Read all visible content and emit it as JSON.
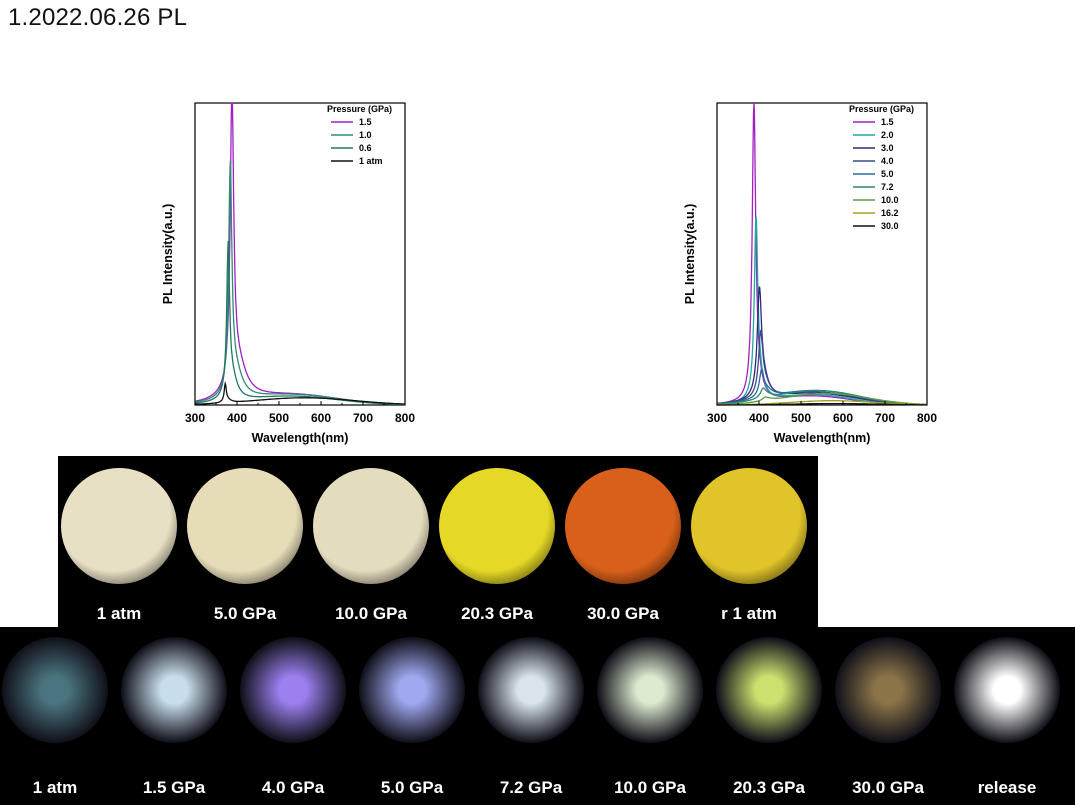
{
  "page": {
    "title": "1.2022.06.26  PL"
  },
  "chart_data": [
    {
      "type": "line",
      "xlabel": "Wavelength(nm)",
      "ylabel": "PL Intensity(a.u.)",
      "xlim": [
        300,
        800
      ],
      "ylim": [
        0,
        1.05
      ],
      "xticks": [
        300,
        400,
        500,
        600,
        700,
        800
      ],
      "legend_title": "Pressure (GPa)",
      "legend_position": "top-right",
      "grid": false,
      "series": [
        {
          "name": "1.5",
          "color": "#a020c0",
          "peak": 388,
          "peak_height": 1.0,
          "sharp_width": 5,
          "mid_width": 24,
          "mid_height": 0.12,
          "broad_center": 530,
          "broad_width": 110,
          "broad_height": 0.035
        },
        {
          "name": "1.0",
          "color": "#2e8b7a",
          "peak": 384,
          "peak_height": 0.76,
          "sharp_width": 4.5,
          "mid_width": 20,
          "mid_height": 0.1,
          "broad_center": 530,
          "broad_width": 110,
          "broad_height": 0.035
        },
        {
          "name": "0.6",
          "color": "#1f7a60",
          "peak": 379,
          "peak_height": 0.5,
          "sharp_width": 4,
          "mid_width": 15,
          "mid_height": 0.08,
          "broad_center": 530,
          "broad_width": 110,
          "broad_height": 0.03
        },
        {
          "name": "1 atm",
          "color": "#111111",
          "peak": 372,
          "peak_height": 0.06,
          "sharp_width": 3,
          "mid_width": 10,
          "mid_height": 0.01,
          "broad_center": 560,
          "broad_width": 120,
          "broad_height": 0.025
        }
      ]
    },
    {
      "type": "line",
      "xlabel": "Wavelength(nm)",
      "ylabel": "PL Intensity(a.u.)",
      "xlim": [
        300,
        800
      ],
      "ylim": [
        0,
        1.05
      ],
      "xticks": [
        300,
        400,
        500,
        600,
        700,
        800
      ],
      "legend_title": "Pressure (GPa)",
      "legend_position": "top-right",
      "grid": false,
      "series": [
        {
          "name": "1.5",
          "color": "#a020c0",
          "peak": 388,
          "peak_height": 1.0,
          "sharp_width": 5,
          "mid_width": 14,
          "mid_height": 0.06,
          "broad_center": 530,
          "broad_width": 90,
          "broad_height": 0.03
        },
        {
          "name": "2.0",
          "color": "#20a8a0",
          "peak": 393,
          "peak_height": 0.6,
          "sharp_width": 5,
          "mid_width": 14,
          "mid_height": 0.06,
          "broad_center": 530,
          "broad_width": 90,
          "broad_height": 0.035
        },
        {
          "name": "3.0",
          "color": "#2a2a7a",
          "peak": 401,
          "peak_height": 0.35,
          "sharp_width": 6,
          "mid_width": 16,
          "mid_height": 0.06,
          "broad_center": 530,
          "broad_width": 100,
          "broad_height": 0.04
        },
        {
          "name": "4.0",
          "color": "#3a4a8a",
          "peak": 404,
          "peak_height": 0.2,
          "sharp_width": 6,
          "mid_width": 16,
          "mid_height": 0.05,
          "broad_center": 530,
          "broad_width": 100,
          "broad_height": 0.045
        },
        {
          "name": "5.0",
          "color": "#2a6a9a",
          "peak": 406,
          "peak_height": 0.08,
          "sharp_width": 6,
          "mid_width": 18,
          "mid_height": 0.03,
          "broad_center": 535,
          "broad_width": 100,
          "broad_height": 0.05
        },
        {
          "name": "7.2",
          "color": "#2a8a70",
          "peak": 410,
          "peak_height": 0.03,
          "sharp_width": 8,
          "mid_width": 18,
          "mid_height": 0.01,
          "broad_center": 540,
          "broad_width": 100,
          "broad_height": 0.05
        },
        {
          "name": "10.0",
          "color": "#5aa040",
          "peak": 415,
          "peak_height": 0.01,
          "sharp_width": 8,
          "mid_width": 18,
          "mid_height": 0.005,
          "broad_center": 560,
          "broad_width": 100,
          "broad_height": 0.04
        },
        {
          "name": "16.2",
          "color": "#a0a020",
          "peak": 420,
          "peak_height": 0.0,
          "sharp_width": 8,
          "mid_width": 18,
          "mid_height": 0.0,
          "broad_center": 575,
          "broad_width": 100,
          "broad_height": 0.015
        },
        {
          "name": "30.0",
          "color": "#111111",
          "peak": 420,
          "peak_height": 0.0,
          "sharp_width": 8,
          "mid_width": 18,
          "mid_height": 0.0,
          "broad_center": 580,
          "broad_width": 100,
          "broad_height": 0.005
        }
      ]
    }
  ],
  "photos_top": [
    {
      "label": "1 atm",
      "color": "#e8e0c4"
    },
    {
      "label": "5.0 GPa",
      "color": "#e6ddb8"
    },
    {
      "label": "10.0 GPa",
      "color": "#e4dcbe"
    },
    {
      "label": "20.3 GPa",
      "color": "#e6d826"
    },
    {
      "label": "30.0 GPa",
      "color": "#d8601a"
    },
    {
      "label": "r 1 atm",
      "color": "#e0c42a"
    }
  ],
  "photos_bottom": [
    {
      "label": "1 atm",
      "color": "#4a7480"
    },
    {
      "label": "1.5 GPa",
      "color": "#c8ddec"
    },
    {
      "label": "4.0 GPa",
      "color": "#9c80f0"
    },
    {
      "label": "5.0 GPa",
      "color": "#a0a8f0"
    },
    {
      "label": "7.2 GPa",
      "color": "#d8e4ea"
    },
    {
      "label": "10.0 GPa",
      "color": "#dcead0"
    },
    {
      "label": "20.3 GPa",
      "color": "#cce070"
    },
    {
      "label": "30.0 GPa",
      "color": "#8a7448"
    },
    {
      "label": "release",
      "color": "#ffffff"
    }
  ]
}
